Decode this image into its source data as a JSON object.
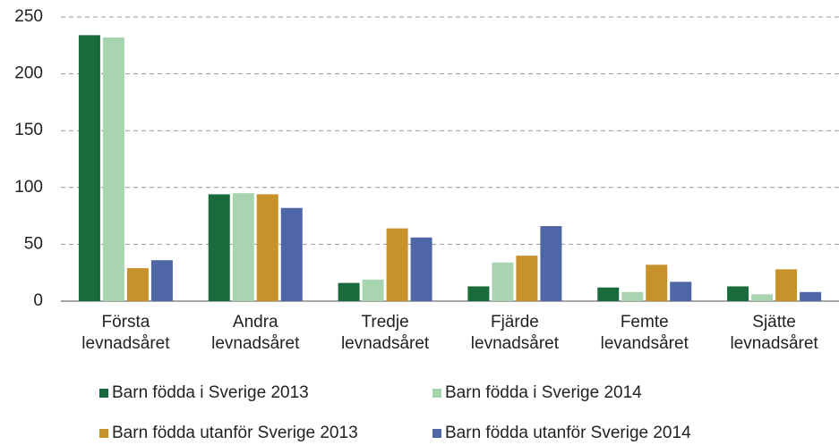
{
  "chart_data": {
    "type": "bar",
    "categories": [
      "Första levnadsåret",
      "Andra levnadsåret",
      "Tredje levnadsåret",
      "Fjärde levnadsåret",
      "Femte levandsåret",
      "Sjätte levnadsåret"
    ],
    "series": [
      {
        "name": "Barn födda i Sverige 2013",
        "color": "#1a6b3c",
        "values": [
          234,
          94,
          16,
          13,
          12,
          13
        ]
      },
      {
        "name": "Barn födda i Sverige 2014",
        "color": "#a8d5b0",
        "values": [
          232,
          95,
          19,
          34,
          8,
          6
        ]
      },
      {
        "name": "Barn födda utanför Sverige 2013",
        "color": "#c8922a",
        "values": [
          29,
          94,
          64,
          40,
          32,
          28
        ]
      },
      {
        "name": "Barn födda utanför Sverige 2014",
        "color": "#4f67a6",
        "values": [
          36,
          82,
          56,
          66,
          17,
          8
        ]
      }
    ],
    "ylim": [
      0,
      250
    ],
    "yticks": [
      0,
      50,
      100,
      150,
      200,
      250
    ],
    "grid": true
  }
}
